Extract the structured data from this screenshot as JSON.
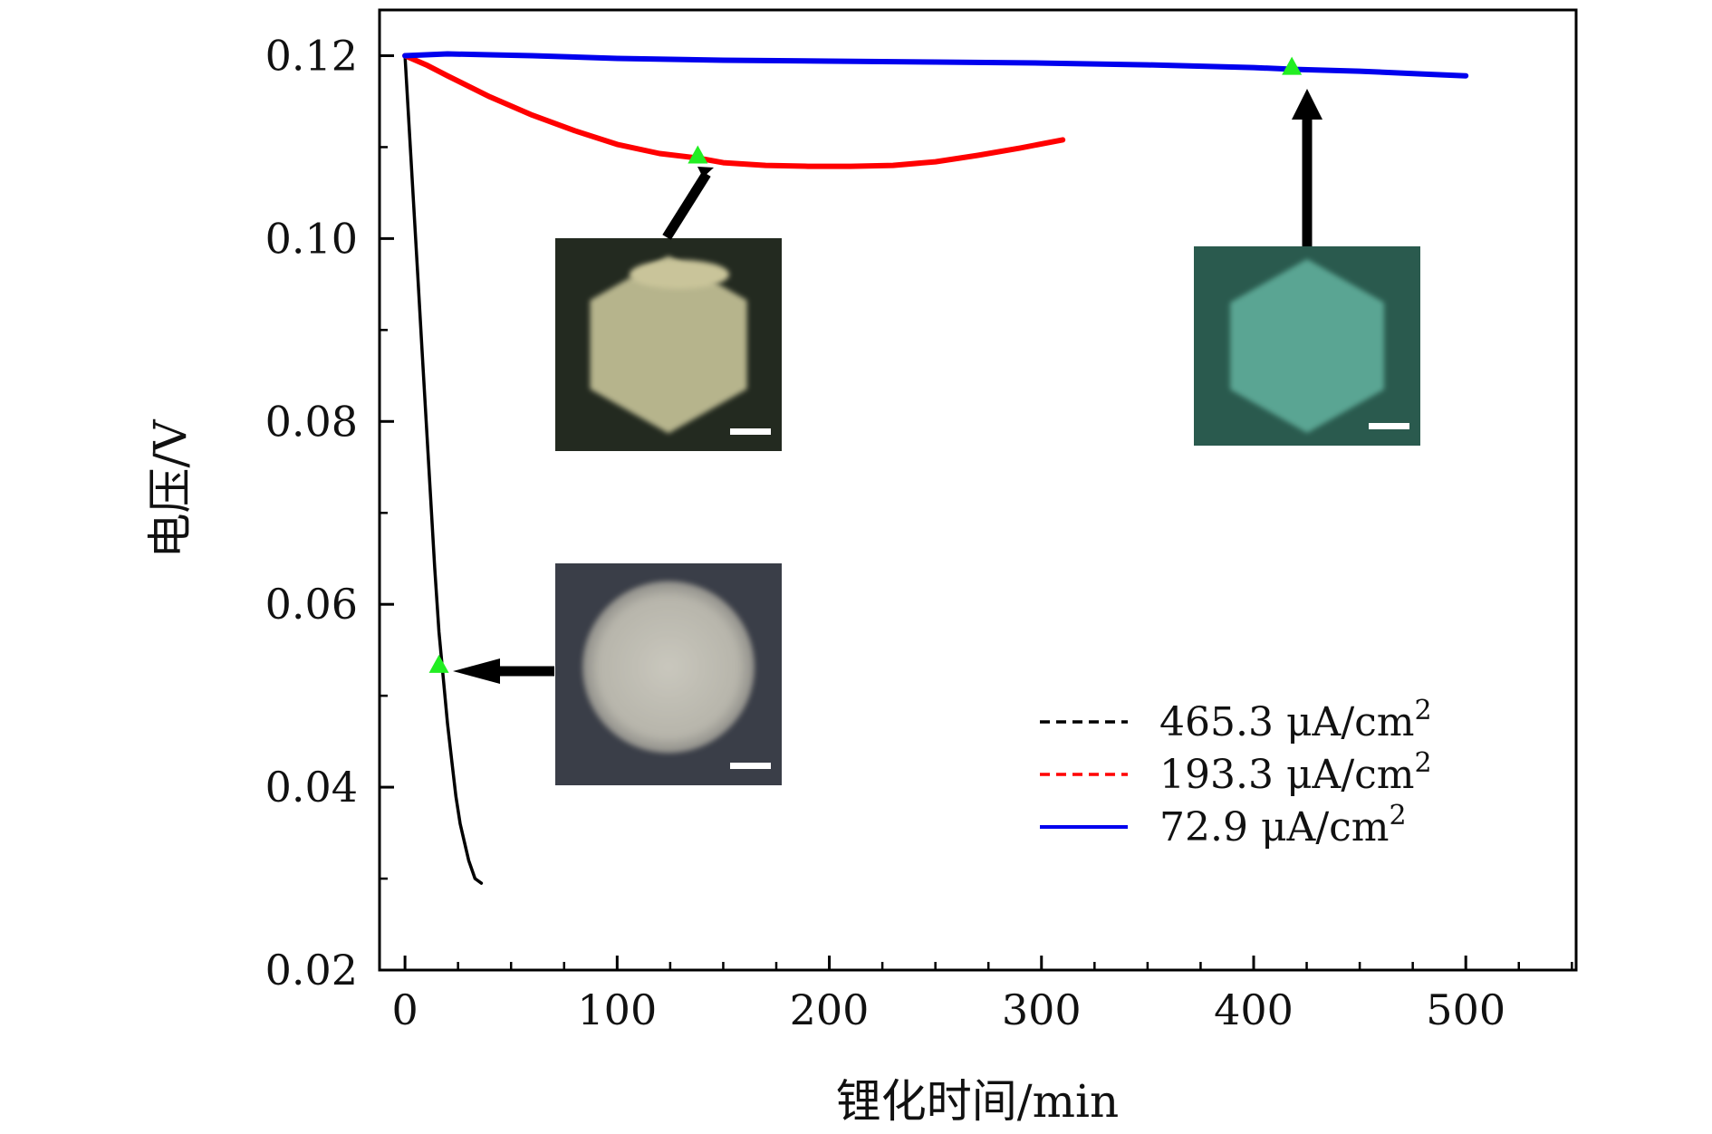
{
  "chart_data": {
    "type": "line",
    "title": "",
    "xlabel": "锂化时间/min",
    "ylabel": "电压/V",
    "xlim": [
      -12,
      552
    ],
    "ylim": [
      0.02,
      0.125
    ],
    "x_ticks": [
      0,
      100,
      200,
      300,
      400,
      500
    ],
    "x_tick_labels": [
      "0",
      "100",
      "200",
      "300",
      "400",
      "500"
    ],
    "y_ticks": [
      0.02,
      0.04,
      0.06,
      0.08,
      0.1,
      0.12
    ],
    "y_tick_labels": [
      "0.02",
      "0.04",
      "0.06",
      "0.08",
      "0.10",
      "0.12"
    ],
    "legend_position": "bottom-right",
    "series": [
      {
        "name": "465.3 μA/cm²",
        "legend_main": "465.3 μA/cm",
        "color": "#000000",
        "legend_dash": "dashed",
        "x": [
          0,
          2,
          4,
          6,
          8,
          10,
          12,
          14,
          16,
          18,
          20,
          22,
          24,
          26,
          28,
          30,
          33,
          36
        ],
        "y": [
          0.12,
          0.112,
          0.104,
          0.096,
          0.088,
          0.08,
          0.072,
          0.064,
          0.057,
          0.052,
          0.047,
          0.043,
          0.039,
          0.036,
          0.034,
          0.032,
          0.03,
          0.0295
        ],
        "marker": {
          "x": 16,
          "y": 0.0533
        }
      },
      {
        "name": "193.3 μA/cm²",
        "legend_main": "193.3 μA/cm",
        "color": "#ff0000",
        "legend_dash": "dashed",
        "x": [
          0,
          10,
          20,
          40,
          60,
          80,
          100,
          120,
          138,
          150,
          170,
          190,
          210,
          230,
          250,
          270,
          290,
          310
        ],
        "y": [
          0.12,
          0.119,
          0.1178,
          0.1155,
          0.1135,
          0.1118,
          0.1103,
          0.1093,
          0.1088,
          0.1083,
          0.108,
          0.1079,
          0.1079,
          0.108,
          0.1084,
          0.1091,
          0.1099,
          0.1108
        ],
        "marker": {
          "x": 138,
          "y": 0.109
        }
      },
      {
        "name": "72.9 μA/cm²",
        "legend_main": "72.9 μA/cm",
        "color": "#0000ee",
        "legend_dash": "solid",
        "x": [
          0,
          20,
          40,
          60,
          100,
          150,
          200,
          250,
          300,
          350,
          400,
          420,
          450,
          480,
          500
        ],
        "y": [
          0.12,
          0.1202,
          0.1201,
          0.12,
          0.1197,
          0.1195,
          0.1194,
          0.1193,
          0.1192,
          0.119,
          0.1187,
          0.1185,
          0.1183,
          0.118,
          0.1178
        ],
        "marker": {
          "x": 418,
          "y": 0.1187
        }
      }
    ],
    "legend_superscript": "2",
    "marker_color": "#22ee22",
    "insets": [
      {
        "name": "hexagon-crystal-photo",
        "shape": "hexagon",
        "bg": "#232a20",
        "fill": "#b6b48c",
        "points_to": 1
      },
      {
        "name": "round-crystal-photo",
        "shape": "circle",
        "bg": "#3a3e48",
        "fill": "#b8b6ac",
        "points_to": 0
      },
      {
        "name": "green-hexagon-photo",
        "shape": "hexagon",
        "bg": "#2a5a4e",
        "fill": "#5aa593",
        "points_to": 2
      }
    ]
  }
}
